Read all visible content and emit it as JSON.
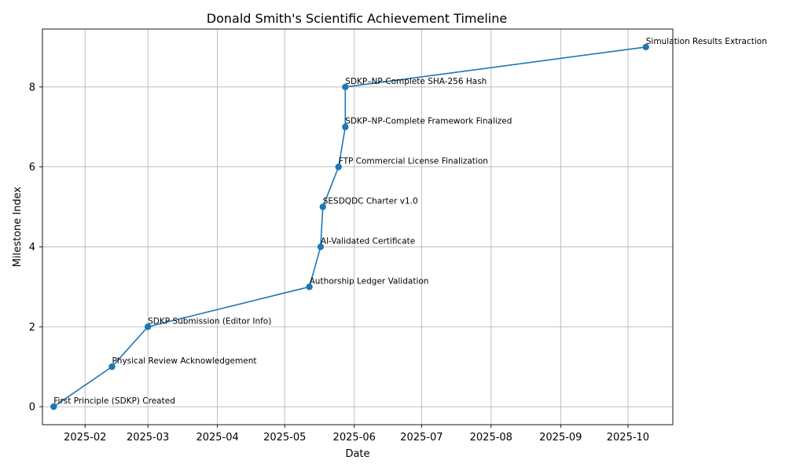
{
  "chart_data": {
    "type": "line",
    "title": "Donald Smith's Scientific Achievement Timeline",
    "xlabel": "Date",
    "ylabel": "Milestone Index",
    "x_axis": {
      "type": "date",
      "range": [
        "2025-01-13",
        "2025-10-21"
      ],
      "ticks": [
        "2025-02-01",
        "2025-03-01",
        "2025-04-01",
        "2025-05-01",
        "2025-06-01",
        "2025-07-01",
        "2025-08-01",
        "2025-09-01",
        "2025-10-01"
      ],
      "tick_labels": [
        "2025-02",
        "2025-03",
        "2025-04",
        "2025-05",
        "2025-06",
        "2025-07",
        "2025-08",
        "2025-09",
        "2025-10"
      ]
    },
    "y_axis": {
      "range": [
        -0.45,
        9.45
      ],
      "ticks": [
        0,
        2,
        4,
        6,
        8
      ],
      "tick_labels": [
        "0",
        "2",
        "4",
        "6",
        "8"
      ]
    },
    "grid": true,
    "line_color": "#1f77b4",
    "marker": "circle",
    "points": [
      {
        "date": "2025-01-18",
        "index": 0,
        "label": "First Principle (SDKP) Created"
      },
      {
        "date": "2025-02-13",
        "index": 1,
        "label": "Physical Review Acknowledgement"
      },
      {
        "date": "2025-03-01",
        "index": 2,
        "label": "SDKP Submission (Editor Info)"
      },
      {
        "date": "2025-05-12",
        "index": 3,
        "label": "Authorship Ledger Validation"
      },
      {
        "date": "2025-05-17",
        "index": 4,
        "label": "AI-Validated Certificate"
      },
      {
        "date": "2025-05-18",
        "index": 5,
        "label": "SESDQDC Charter v1.0"
      },
      {
        "date": "2025-05-25",
        "index": 6,
        "label": "FTP Commercial License Finalization"
      },
      {
        "date": "2025-05-28",
        "index": 7,
        "label": "SDKP–NP-Complete Framework Finalized"
      },
      {
        "date": "2025-05-28",
        "index": 8,
        "label": "SDKP–NP-Complete SHA-256 Hash"
      },
      {
        "date": "2025-10-09",
        "index": 9,
        "label": "Simulation Results Extraction"
      }
    ]
  }
}
